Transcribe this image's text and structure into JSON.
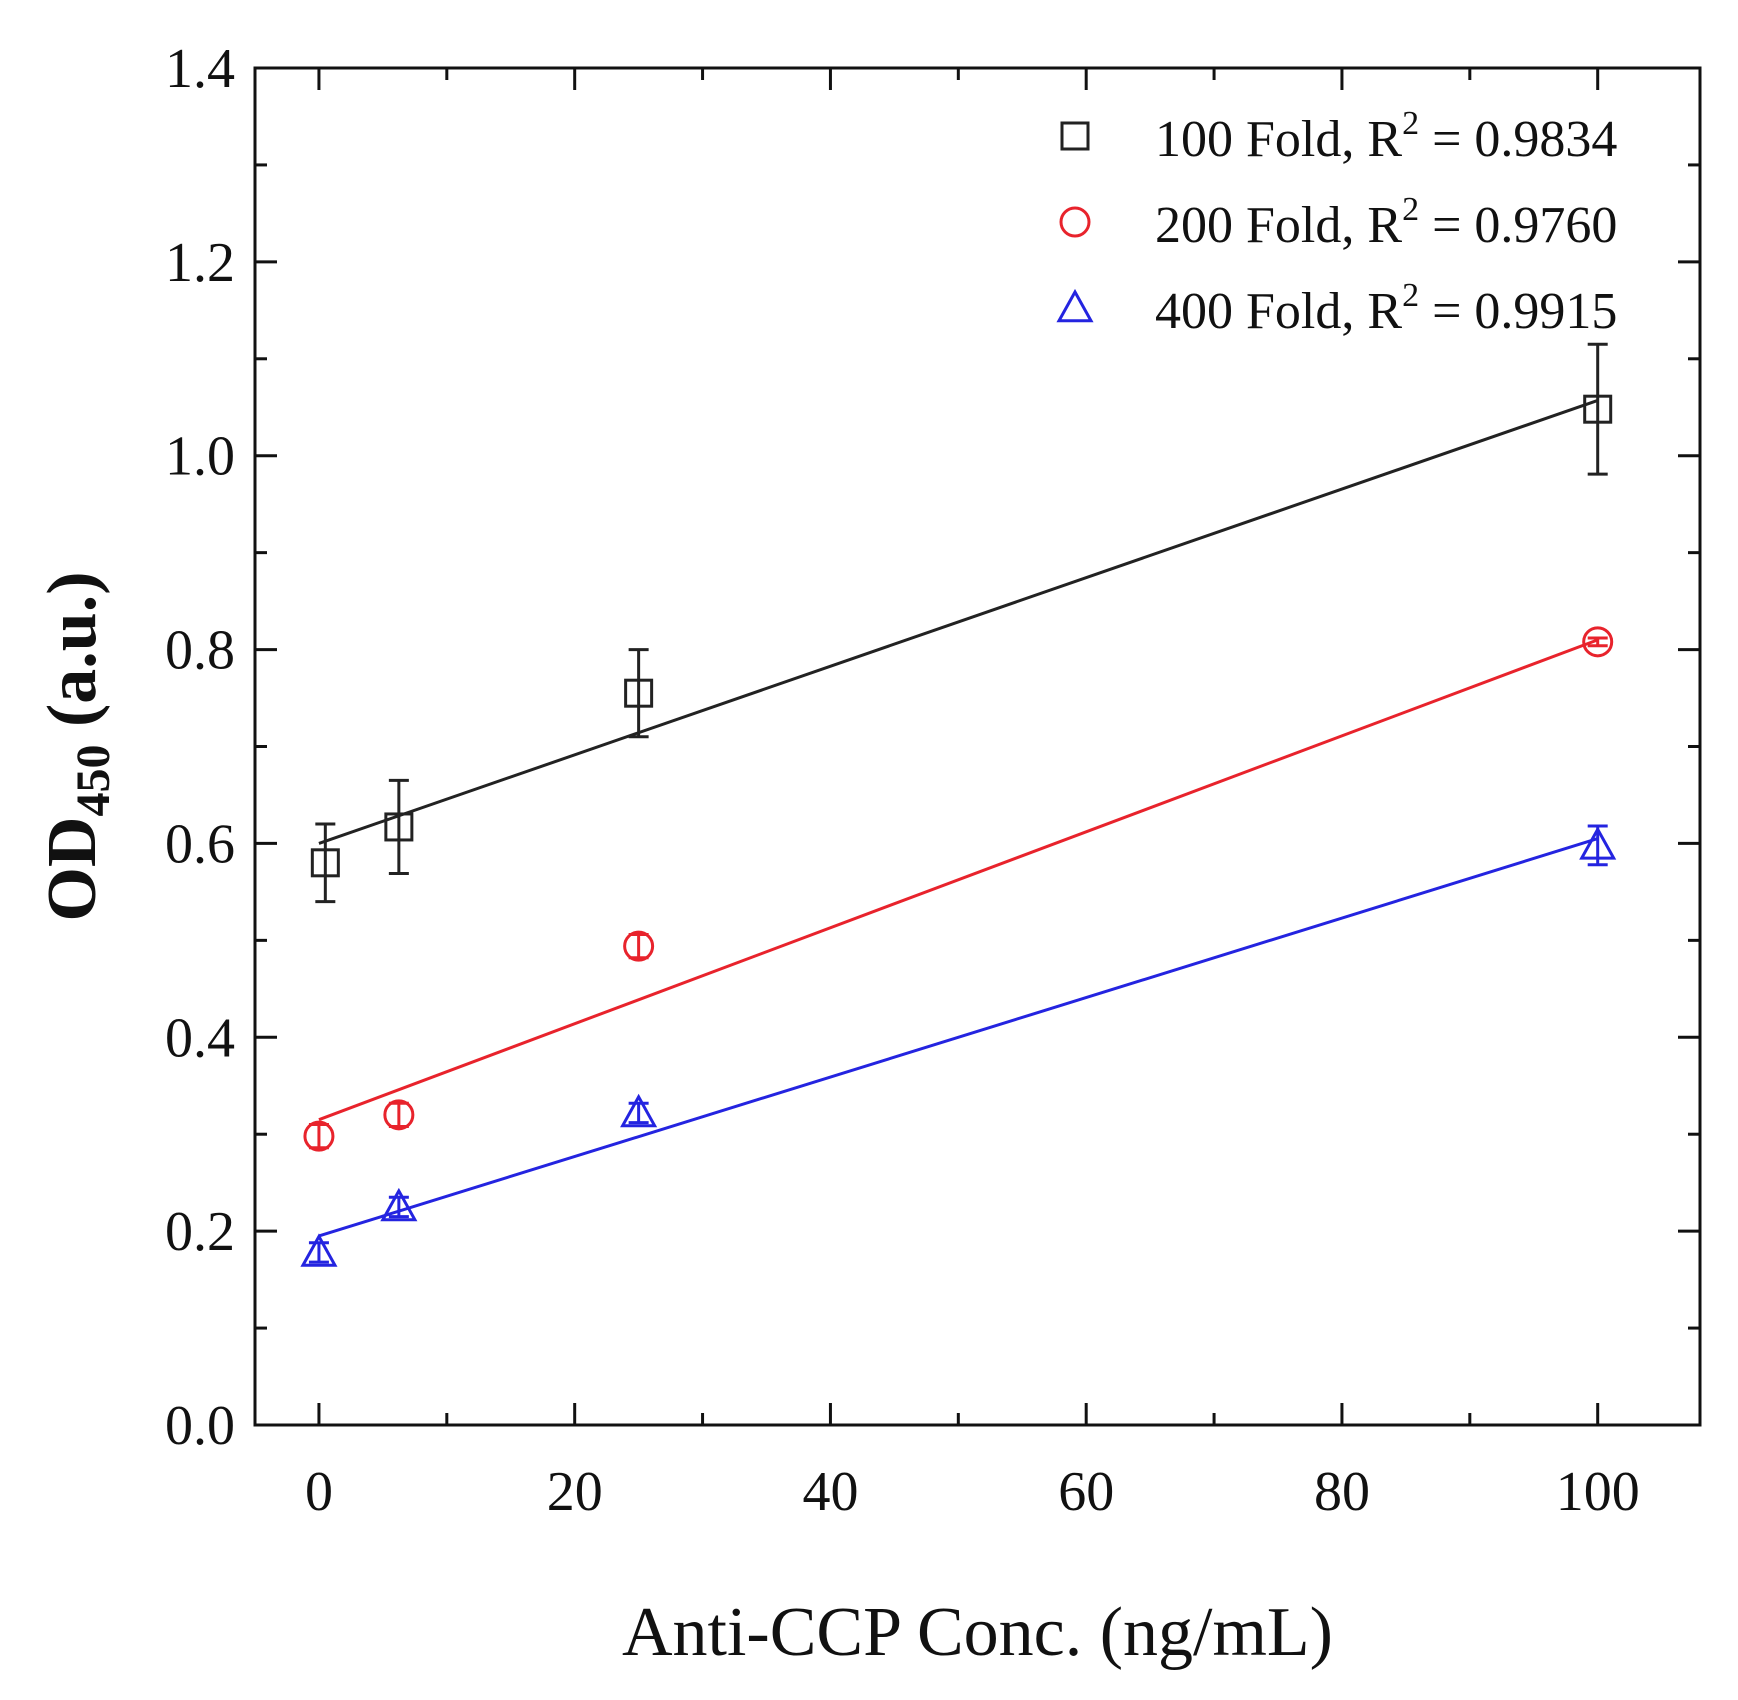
{
  "chart_data": {
    "type": "scatter",
    "title": "",
    "xlabel": "Anti-CCP Conc. (ng/mL)",
    "ylabel": {
      "main": "OD",
      "subscript": "450",
      "unit": " (a.u.)"
    },
    "xlim": [
      -5,
      108
    ],
    "ylim": [
      0.0,
      1.4
    ],
    "xticks": [
      0,
      20,
      40,
      60,
      80,
      100
    ],
    "yticks": [
      0.0,
      0.2,
      0.4,
      0.6,
      0.8,
      1.0,
      1.2,
      1.4
    ],
    "xtick_labels": [
      "0",
      "20",
      "40",
      "60",
      "80",
      "100"
    ],
    "ytick_labels": [
      "0.0",
      "0.2",
      "0.4",
      "0.6",
      "0.8",
      "1.0",
      "1.2",
      "1.4"
    ],
    "legend_position": "top-right",
    "series": [
      {
        "name": "100 Fold, R",
        "legend_sup": "2",
        "legend_rest": " = 0.9834",
        "marker": "square",
        "color": "#222222",
        "x": [
          0.5,
          6.25,
          25,
          100
        ],
        "y": [
          0.58,
          0.617,
          0.755,
          1.048
        ],
        "err": [
          0.04,
          0.048,
          0.045,
          0.067
        ],
        "fit": {
          "x": [
            0,
            100
          ],
          "y": [
            0.6,
            1.057
          ]
        }
      },
      {
        "name": "200 Fold, R",
        "legend_sup": "2",
        "legend_rest": " = 0.9760",
        "marker": "circle",
        "color": "#e8232c",
        "x": [
          0,
          6.25,
          25,
          100
        ],
        "y": [
          0.298,
          0.32,
          0.494,
          0.808
        ],
        "err": [
          0.012,
          0.012,
          0.012,
          0.004
        ],
        "fit": {
          "x": [
            0,
            100
          ],
          "y": [
            0.315,
            0.81
          ]
        }
      },
      {
        "name": "400 Fold, R",
        "legend_sup": "2",
        "legend_rest": " = 0.9915",
        "marker": "triangle",
        "color": "#2424e0",
        "x": [
          0,
          6.25,
          25,
          100
        ],
        "y": [
          0.178,
          0.225,
          0.322,
          0.598
        ],
        "err": [
          0.01,
          0.01,
          0.01,
          0.02
        ],
        "fit": {
          "x": [
            0,
            100
          ],
          "y": [
            0.195,
            0.605
          ]
        }
      }
    ]
  }
}
